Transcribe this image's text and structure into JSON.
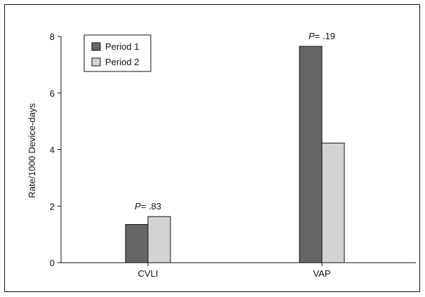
{
  "chart_data": {
    "type": "bar",
    "categories": [
      "CVLI",
      "VAP"
    ],
    "series": [
      {
        "name": "Period 1",
        "values": [
          1.35,
          7.65
        ],
        "color": "#666666"
      },
      {
        "name": "Period 2",
        "values": [
          1.63,
          4.23
        ],
        "color": "#d3d3d3"
      }
    ],
    "ylabel": "Rate/1000 Device-days",
    "xlabel": "",
    "ylim": [
      0,
      8
    ],
    "yticks": [
      0,
      2,
      4,
      6,
      8
    ],
    "grid": false,
    "legend_position": "top-left",
    "annotations": [
      {
        "category": "CVLI",
        "p_symbol": "P",
        "p_text": "= .83"
      },
      {
        "category": "VAP",
        "p_symbol": "P",
        "p_text": "= .19"
      }
    ]
  }
}
